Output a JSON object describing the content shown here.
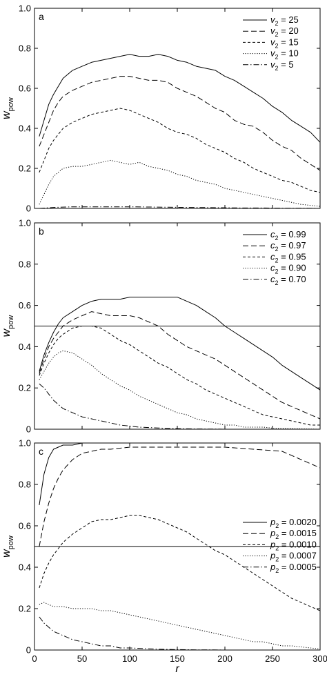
{
  "figure": {
    "xlabel": "r"
  },
  "chart_data": [
    {
      "type": "line",
      "panel_label": "a",
      "ylabel": "w_pow",
      "xlim": [
        0,
        300
      ],
      "ylim": [
        0,
        1.0
      ],
      "x_ticks": [
        0,
        50,
        100,
        150,
        200,
        250,
        300
      ],
      "y_ticks": [
        0,
        0.2,
        0.4,
        0.6,
        0.8,
        1.0
      ],
      "show_x_tick_labels": false,
      "legend": "top-right",
      "series": [
        {
          "name": "v2 = 25",
          "legend_text": "v₂ = 25",
          "dash": "solid",
          "x": [
            5,
            10,
            15,
            20,
            25,
            30,
            40,
            50,
            60,
            70,
            80,
            90,
            100,
            110,
            120,
            130,
            140,
            150,
            160,
            170,
            180,
            190,
            200,
            210,
            220,
            230,
            240,
            250,
            260,
            270,
            280,
            290,
            300
          ],
          "y": [
            0.36,
            0.44,
            0.52,
            0.57,
            0.61,
            0.65,
            0.69,
            0.71,
            0.73,
            0.74,
            0.75,
            0.76,
            0.77,
            0.76,
            0.76,
            0.77,
            0.76,
            0.74,
            0.73,
            0.71,
            0.7,
            0.69,
            0.66,
            0.64,
            0.61,
            0.58,
            0.55,
            0.51,
            0.48,
            0.44,
            0.41,
            0.38,
            0.33
          ]
        },
        {
          "name": "v2 = 20",
          "legend_text": "v₂ = 20",
          "dash": "longdash",
          "x": [
            5,
            10,
            15,
            20,
            25,
            30,
            40,
            50,
            60,
            70,
            80,
            90,
            100,
            110,
            120,
            130,
            140,
            150,
            160,
            170,
            180,
            190,
            200,
            210,
            220,
            230,
            240,
            250,
            260,
            270,
            280,
            290,
            300
          ],
          "y": [
            0.31,
            0.37,
            0.43,
            0.49,
            0.53,
            0.56,
            0.59,
            0.61,
            0.63,
            0.64,
            0.65,
            0.66,
            0.66,
            0.65,
            0.64,
            0.64,
            0.63,
            0.6,
            0.58,
            0.56,
            0.53,
            0.5,
            0.48,
            0.44,
            0.42,
            0.41,
            0.38,
            0.34,
            0.31,
            0.29,
            0.25,
            0.22,
            0.19
          ]
        },
        {
          "name": "v2 = 15",
          "legend_text": "v₂ = 15",
          "dash": "shortdash",
          "x": [
            5,
            10,
            15,
            20,
            25,
            30,
            40,
            50,
            60,
            70,
            80,
            90,
            100,
            110,
            120,
            130,
            140,
            150,
            160,
            170,
            180,
            190,
            200,
            210,
            220,
            230,
            240,
            250,
            260,
            270,
            280,
            290,
            300
          ],
          "y": [
            0.18,
            0.24,
            0.3,
            0.34,
            0.37,
            0.4,
            0.43,
            0.45,
            0.47,
            0.48,
            0.49,
            0.5,
            0.49,
            0.47,
            0.45,
            0.43,
            0.4,
            0.38,
            0.37,
            0.35,
            0.32,
            0.3,
            0.28,
            0.25,
            0.23,
            0.2,
            0.18,
            0.16,
            0.14,
            0.13,
            0.11,
            0.09,
            0.08
          ]
        },
        {
          "name": "v2 = 10",
          "legend_text": "v₂ = 10",
          "dash": "dotted",
          "x": [
            5,
            10,
            15,
            20,
            25,
            30,
            40,
            50,
            60,
            70,
            80,
            90,
            100,
            110,
            120,
            130,
            140,
            150,
            160,
            170,
            180,
            190,
            200,
            210,
            220,
            230,
            240,
            250,
            260,
            270,
            280,
            290,
            300
          ],
          "y": [
            0.02,
            0.07,
            0.12,
            0.16,
            0.18,
            0.2,
            0.21,
            0.21,
            0.22,
            0.23,
            0.24,
            0.23,
            0.22,
            0.23,
            0.21,
            0.2,
            0.19,
            0.17,
            0.16,
            0.14,
            0.13,
            0.12,
            0.1,
            0.09,
            0.08,
            0.07,
            0.06,
            0.05,
            0.04,
            0.03,
            0.02,
            0.015,
            0.01
          ]
        },
        {
          "name": "v2 = 5",
          "legend_text": "v₂ = 5",
          "dash": "dashdot",
          "x": [
            5,
            20,
            40,
            60,
            80,
            100,
            120,
            140,
            160,
            180,
            200,
            220,
            240,
            260,
            280,
            300
          ],
          "y": [
            0.0,
            0.005,
            0.008,
            0.008,
            0.008,
            0.008,
            0.007,
            0.006,
            0.005,
            0.004,
            0.003,
            0.002,
            0.002,
            0.001,
            0.001,
            0.0
          ]
        }
      ]
    },
    {
      "type": "line",
      "panel_label": "b",
      "ylabel": "w_pow",
      "xlim": [
        0,
        300
      ],
      "ylim": [
        0,
        1.0
      ],
      "x_ticks": [
        0,
        50,
        100,
        150,
        200,
        250,
        300
      ],
      "y_ticks": [
        0,
        0.2,
        0.4,
        0.6,
        0.8,
        1.0
      ],
      "show_x_tick_labels": false,
      "reference_line_y": 0.5,
      "legend": "top-right",
      "series": [
        {
          "name": "c2 = 0.99",
          "legend_text": "c₂ = 0.99",
          "dash": "solid",
          "x": [
            5,
            10,
            15,
            20,
            25,
            30,
            40,
            50,
            60,
            70,
            80,
            90,
            100,
            110,
            120,
            130,
            140,
            150,
            160,
            170,
            180,
            190,
            200,
            210,
            220,
            230,
            240,
            250,
            260,
            270,
            280,
            290,
            300
          ],
          "y": [
            0.28,
            0.36,
            0.42,
            0.47,
            0.51,
            0.54,
            0.57,
            0.6,
            0.62,
            0.63,
            0.63,
            0.63,
            0.64,
            0.64,
            0.64,
            0.64,
            0.64,
            0.64,
            0.62,
            0.6,
            0.57,
            0.54,
            0.5,
            0.47,
            0.44,
            0.41,
            0.38,
            0.35,
            0.31,
            0.28,
            0.25,
            0.22,
            0.19
          ]
        },
        {
          "name": "c2 = 0.97",
          "legend_text": "c₂ = 0.97",
          "dash": "longdash",
          "x": [
            5,
            10,
            15,
            20,
            25,
            30,
            40,
            50,
            60,
            70,
            80,
            90,
            100,
            110,
            120,
            130,
            140,
            150,
            160,
            170,
            180,
            190,
            200,
            210,
            220,
            230,
            240,
            250,
            260,
            270,
            280,
            290,
            300
          ],
          "y": [
            0.27,
            0.34,
            0.4,
            0.44,
            0.47,
            0.5,
            0.53,
            0.55,
            0.57,
            0.56,
            0.55,
            0.55,
            0.55,
            0.54,
            0.52,
            0.5,
            0.46,
            0.43,
            0.4,
            0.38,
            0.36,
            0.34,
            0.31,
            0.28,
            0.25,
            0.22,
            0.19,
            0.16,
            0.13,
            0.11,
            0.09,
            0.07,
            0.05
          ]
        },
        {
          "name": "c2 = 0.95",
          "legend_text": "c₂ = 0.95",
          "dash": "shortdash",
          "x": [
            5,
            10,
            15,
            20,
            25,
            30,
            40,
            50,
            60,
            70,
            80,
            90,
            100,
            110,
            120,
            130,
            140,
            150,
            160,
            170,
            180,
            190,
            200,
            210,
            220,
            230,
            240,
            250,
            260,
            270,
            280,
            290,
            300
          ],
          "y": [
            0.26,
            0.32,
            0.37,
            0.41,
            0.44,
            0.46,
            0.49,
            0.5,
            0.5,
            0.49,
            0.46,
            0.43,
            0.41,
            0.38,
            0.35,
            0.32,
            0.3,
            0.27,
            0.24,
            0.22,
            0.19,
            0.17,
            0.15,
            0.13,
            0.11,
            0.09,
            0.07,
            0.06,
            0.05,
            0.04,
            0.03,
            0.02,
            0.02
          ]
        },
        {
          "name": "c2 = 0.90",
          "legend_text": "c₂ = 0.90",
          "dash": "dotted",
          "x": [
            5,
            10,
            15,
            20,
            25,
            30,
            40,
            50,
            60,
            70,
            80,
            90,
            100,
            110,
            120,
            130,
            140,
            150,
            160,
            170,
            180,
            190,
            200,
            210,
            220,
            230,
            240,
            250,
            260,
            270,
            280,
            290,
            300
          ],
          "y": [
            0.24,
            0.28,
            0.32,
            0.35,
            0.37,
            0.38,
            0.37,
            0.34,
            0.31,
            0.27,
            0.24,
            0.21,
            0.19,
            0.16,
            0.14,
            0.12,
            0.1,
            0.08,
            0.07,
            0.05,
            0.04,
            0.03,
            0.02,
            0.02,
            0.01,
            0.01,
            0.01,
            0.005,
            0.004,
            0.003,
            0.002,
            0.001,
            0.0
          ]
        },
        {
          "name": "c2 = 0.70",
          "legend_text": "c₂ = 0.70",
          "dash": "dashdot",
          "x": [
            5,
            10,
            15,
            20,
            25,
            30,
            40,
            50,
            60,
            70,
            80,
            90,
            100,
            110,
            120,
            130,
            140,
            150,
            160,
            170,
            180,
            190,
            200,
            210,
            220,
            230,
            240,
            250,
            260,
            270,
            280,
            290,
            300
          ],
          "y": [
            0.22,
            0.2,
            0.17,
            0.14,
            0.12,
            0.1,
            0.08,
            0.06,
            0.05,
            0.04,
            0.03,
            0.02,
            0.015,
            0.01,
            0.008,
            0.006,
            0.004,
            0.003,
            0.002,
            0.0015,
            0.001,
            0.001,
            0.0,
            0.0,
            0.0,
            0.0,
            0.0,
            0.0,
            0.0,
            0.0,
            0.0,
            0.0,
            0.0
          ]
        }
      ]
    },
    {
      "type": "line",
      "panel_label": "c",
      "ylabel": "w_pow",
      "xlim": [
        0,
        300
      ],
      "ylim": [
        0,
        1.0
      ],
      "x_ticks": [
        0,
        50,
        100,
        150,
        200,
        250,
        300
      ],
      "y_ticks": [
        0,
        0.2,
        0.4,
        0.6,
        0.8,
        1.0
      ],
      "show_x_tick_labels": true,
      "reference_line_y": 0.5,
      "legend": "center-right",
      "series": [
        {
          "name": "p2 = 0.0020",
          "legend_text": "p₂ = 0.0020",
          "dash": "solid",
          "x": [
            5,
            10,
            15,
            20,
            25,
            30,
            40,
            50,
            60,
            80,
            100,
            150,
            200,
            250,
            300
          ],
          "y": [
            0.7,
            0.85,
            0.93,
            0.97,
            0.98,
            0.99,
            0.99,
            1.0,
            1.0,
            1.0,
            1.0,
            1.0,
            1.0,
            1.0,
            1.0
          ]
        },
        {
          "name": "p2 = 0.0015",
          "legend_text": "p₂ = 0.0015",
          "dash": "longdash",
          "x": [
            5,
            10,
            15,
            20,
            25,
            30,
            40,
            50,
            60,
            70,
            80,
            100,
            120,
            150,
            180,
            200,
            230,
            260,
            300
          ],
          "y": [
            0.5,
            0.62,
            0.71,
            0.78,
            0.83,
            0.87,
            0.92,
            0.95,
            0.96,
            0.97,
            0.97,
            0.98,
            0.98,
            0.98,
            0.98,
            0.98,
            0.97,
            0.96,
            0.88
          ]
        },
        {
          "name": "p2 = 0.0010",
          "legend_text": "p₂ = 0.0010",
          "dash": "shortdash",
          "x": [
            5,
            10,
            15,
            20,
            25,
            30,
            40,
            50,
            60,
            70,
            80,
            90,
            100,
            110,
            120,
            130,
            140,
            150,
            160,
            170,
            180,
            190,
            200,
            210,
            220,
            230,
            240,
            250,
            260,
            270,
            280,
            290,
            300
          ],
          "y": [
            0.3,
            0.37,
            0.42,
            0.46,
            0.49,
            0.52,
            0.56,
            0.59,
            0.62,
            0.63,
            0.63,
            0.64,
            0.65,
            0.65,
            0.64,
            0.63,
            0.61,
            0.59,
            0.57,
            0.54,
            0.51,
            0.48,
            0.46,
            0.43,
            0.4,
            0.37,
            0.34,
            0.31,
            0.28,
            0.25,
            0.23,
            0.21,
            0.19
          ]
        },
        {
          "name": "p2 = 0.0007",
          "legend_text": "p₂ = 0.0007",
          "dash": "dotted",
          "x": [
            5,
            10,
            15,
            20,
            25,
            30,
            40,
            50,
            60,
            70,
            80,
            90,
            100,
            110,
            120,
            130,
            140,
            150,
            160,
            170,
            180,
            190,
            200,
            210,
            220,
            230,
            240,
            250,
            260,
            270,
            280,
            290,
            300
          ],
          "y": [
            0.22,
            0.23,
            0.22,
            0.21,
            0.21,
            0.21,
            0.2,
            0.2,
            0.2,
            0.19,
            0.19,
            0.18,
            0.17,
            0.16,
            0.15,
            0.14,
            0.13,
            0.12,
            0.11,
            0.1,
            0.09,
            0.08,
            0.07,
            0.06,
            0.05,
            0.04,
            0.04,
            0.03,
            0.02,
            0.02,
            0.015,
            0.01,
            0.005
          ]
        },
        {
          "name": "p2 = 0.0005",
          "legend_text": "p₂ = 0.0005",
          "dash": "dashdot",
          "x": [
            5,
            10,
            15,
            20,
            25,
            30,
            40,
            50,
            60,
            70,
            80,
            90,
            100,
            110,
            120,
            130,
            140,
            150,
            160,
            170,
            180,
            200,
            220,
            240,
            260,
            280,
            300
          ],
          "y": [
            0.16,
            0.13,
            0.11,
            0.09,
            0.08,
            0.07,
            0.05,
            0.04,
            0.03,
            0.02,
            0.02,
            0.01,
            0.01,
            0.008,
            0.006,
            0.004,
            0.003,
            0.002,
            0.0015,
            0.001,
            0.001,
            0.0,
            0.0,
            0.0,
            0.0,
            0.0,
            0.0
          ]
        }
      ]
    }
  ]
}
